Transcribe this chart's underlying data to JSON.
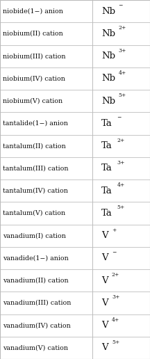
{
  "rows": [
    [
      "niobide(1−) anion",
      "Nb",
      "−"
    ],
    [
      "niobium(II) cation",
      "Nb",
      "2+"
    ],
    [
      "niobium(III) cation",
      "Nb",
      "3+"
    ],
    [
      "niobium(IV) cation",
      "Nb",
      "4+"
    ],
    [
      "niobium(V) cation",
      "Nb",
      "5+"
    ],
    [
      "tantalide(1−) anion",
      "Ta",
      "−"
    ],
    [
      "tantalum(II) cation",
      "Ta",
      "2+"
    ],
    [
      "tantalum(III) cation",
      "Ta",
      "3+"
    ],
    [
      "tantalum(IV) cation",
      "Ta",
      "4+"
    ],
    [
      "tantalum(V) cation",
      "Ta",
      "5+"
    ],
    [
      "vanadium(I) cation",
      "V",
      "+"
    ],
    [
      "vanadide(1−) anion",
      "V",
      "−"
    ],
    [
      "vanadium(II) cation",
      "V",
      "2+"
    ],
    [
      "vanadium(III) cation",
      "V",
      "3+"
    ],
    [
      "vanadium(IV) cation",
      "V",
      "4+"
    ],
    [
      "vanadium(V) cation",
      "V",
      "5+"
    ]
  ],
  "bg_color": "#ffffff",
  "border_color": "#bbbbbb",
  "text_color": "#111111",
  "figsize": [
    2.16,
    5.16
  ],
  "dpi": 100,
  "col_split": 0.615
}
